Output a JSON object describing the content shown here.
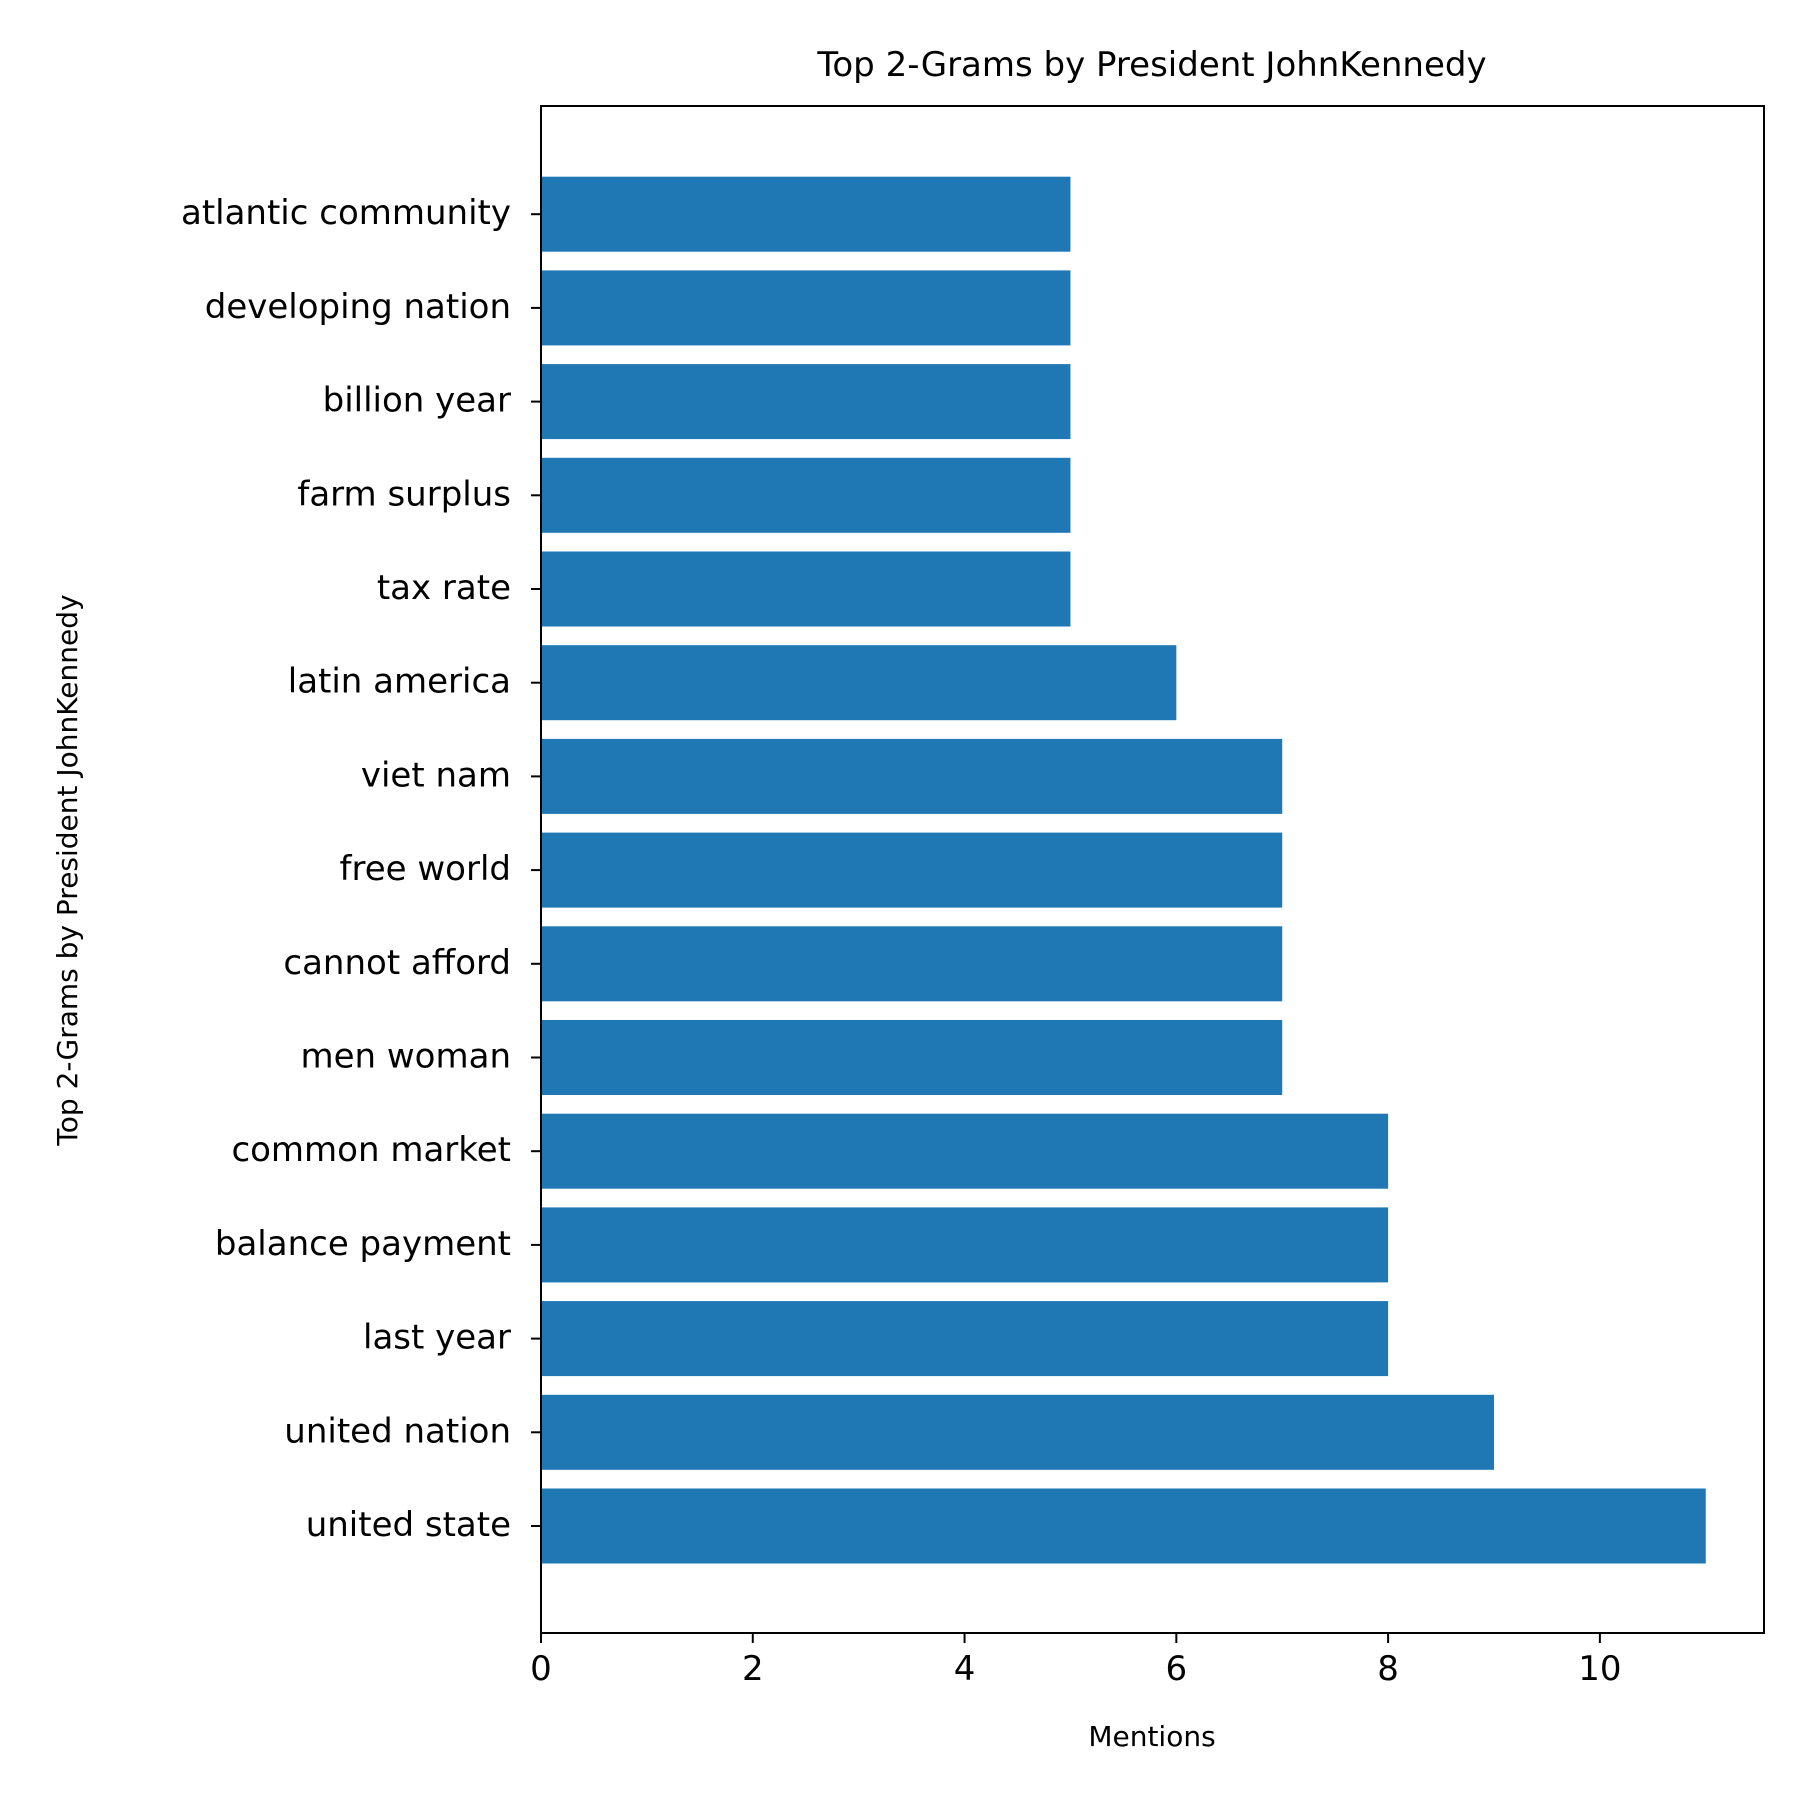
{
  "chart_data": {
    "type": "bar",
    "orientation": "horizontal",
    "title": "Top 2-Grams by President JohnKennedy",
    "xlabel": "Mentions",
    "ylabel": "Top 2-Grams by President JohnKennedy",
    "categories": [
      "united state",
      "united nation",
      "last year",
      "balance payment",
      "common market",
      "men woman",
      "cannot afford",
      "free world",
      "viet nam",
      "latin america",
      "tax rate",
      "farm surplus",
      "billion year",
      "developing nation",
      "atlantic community"
    ],
    "values": [
      11,
      9,
      8,
      8,
      8,
      7,
      7,
      7,
      7,
      6,
      5,
      5,
      5,
      5,
      5
    ],
    "xlim": [
      0,
      11.55
    ],
    "xticks": [
      0,
      2,
      4,
      6,
      8,
      10
    ],
    "grid": false,
    "bar_color": "#1f77b4"
  }
}
